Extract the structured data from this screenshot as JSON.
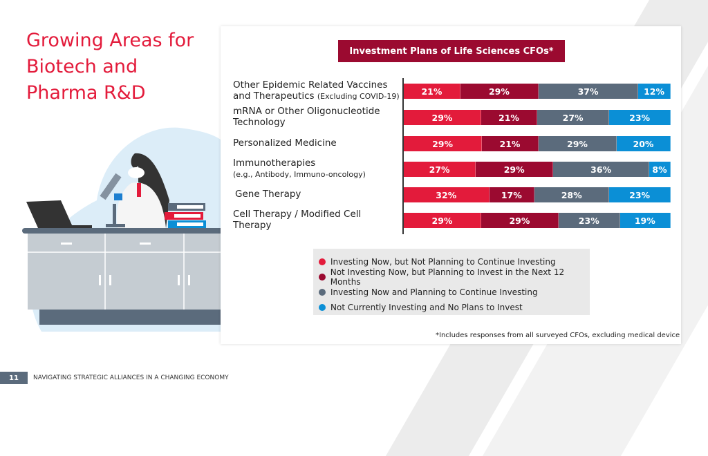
{
  "slide": {
    "title": "Growing Areas for Biotech and Pharma R&D",
    "page_number": "11",
    "footer": "NAVIGATING STRATEGIC ALLIANCES IN A CHANGING ECONOMY"
  },
  "chart_data": {
    "type": "bar",
    "stacked": true,
    "orientation": "horizontal",
    "title": "Investment Plans of Life Sciences CFOs*",
    "categories": [
      {
        "main": "Other Epidemic Related Vaccines and Therapeutics",
        "sub": "(Excluding COVID-19)"
      },
      {
        "main": "mRNA or Other Oligonucleotide Technology",
        "sub": ""
      },
      {
        "main": "Personalized Medicine",
        "sub": ""
      },
      {
        "main": "Immunotherapies",
        "sub": "(e.g., Antibody, Immuno-oncology)"
      },
      {
        "main": "Gene Therapy",
        "sub": ""
      },
      {
        "main": "Cell Therapy / Modified Cell Therapy",
        "sub": ""
      }
    ],
    "series": [
      {
        "name": "Investing Now, but Not Planning to Continue Investing",
        "color": "#e31b3b",
        "values": [
          21,
          29,
          29,
          27,
          32,
          29
        ]
      },
      {
        "name": "Not Investing Now, but Planning to Invest in the Next 12 Months",
        "color": "#9b0a30",
        "values": [
          29,
          21,
          21,
          29,
          17,
          29
        ]
      },
      {
        "name": "Investing Now and Planning to Continue Investing",
        "color": "#5b6b7c",
        "values": [
          37,
          27,
          29,
          36,
          28,
          23
        ]
      },
      {
        "name": "Not Currently Investing and No Plans to Invest",
        "color": "#0b8fd6",
        "values": [
          12,
          23,
          20,
          8,
          23,
          19
        ]
      }
    ],
    "unit": "%",
    "legend": "bottom",
    "footnote": "*Includes responses from all surveyed CFOs, excluding medical device"
  }
}
